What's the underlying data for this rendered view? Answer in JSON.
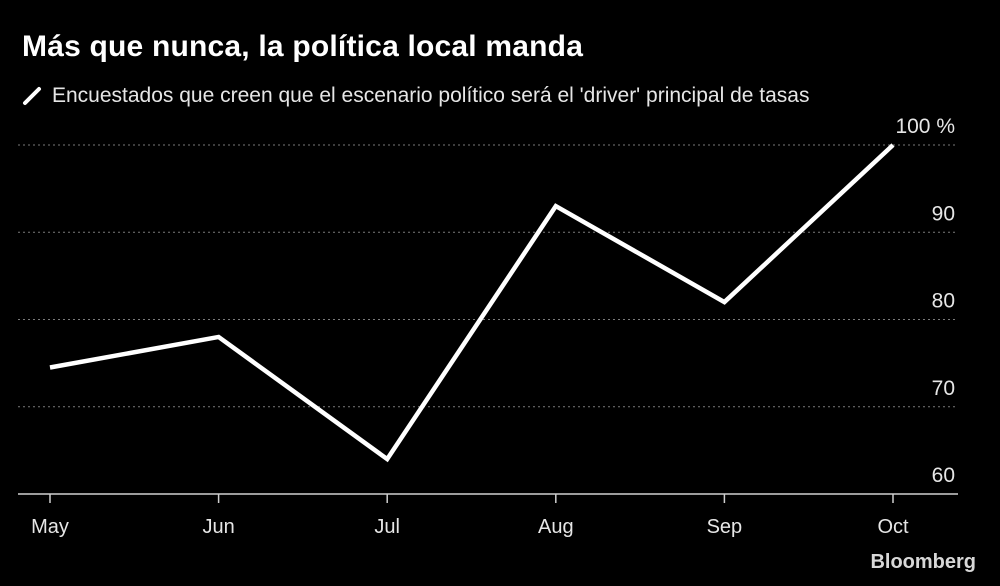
{
  "title": "Más que nunca, la política local manda",
  "legend_label": "Encuestados que creen que el escenario político será el 'driver' principal de tasas",
  "source": "Bloomberg",
  "colors": {
    "background": "#000000",
    "line": "#ffffff",
    "grid": "#7a7a7a"
  },
  "chart_data": {
    "type": "line",
    "categories": [
      "May",
      "Jun",
      "Jul",
      "Aug",
      "Sep",
      "Oct"
    ],
    "series": [
      {
        "values": [
          74.5,
          78,
          64,
          93,
          82,
          100
        ]
      }
    ],
    "yticks": [
      60,
      70,
      80,
      90,
      100
    ],
    "ytick_labels": [
      "60",
      "70",
      "80",
      "90",
      "100 %"
    ],
    "ylim": [
      60,
      100
    ],
    "grid": true,
    "grid_style": "dotted horizontal",
    "y_axis_side": "right"
  }
}
